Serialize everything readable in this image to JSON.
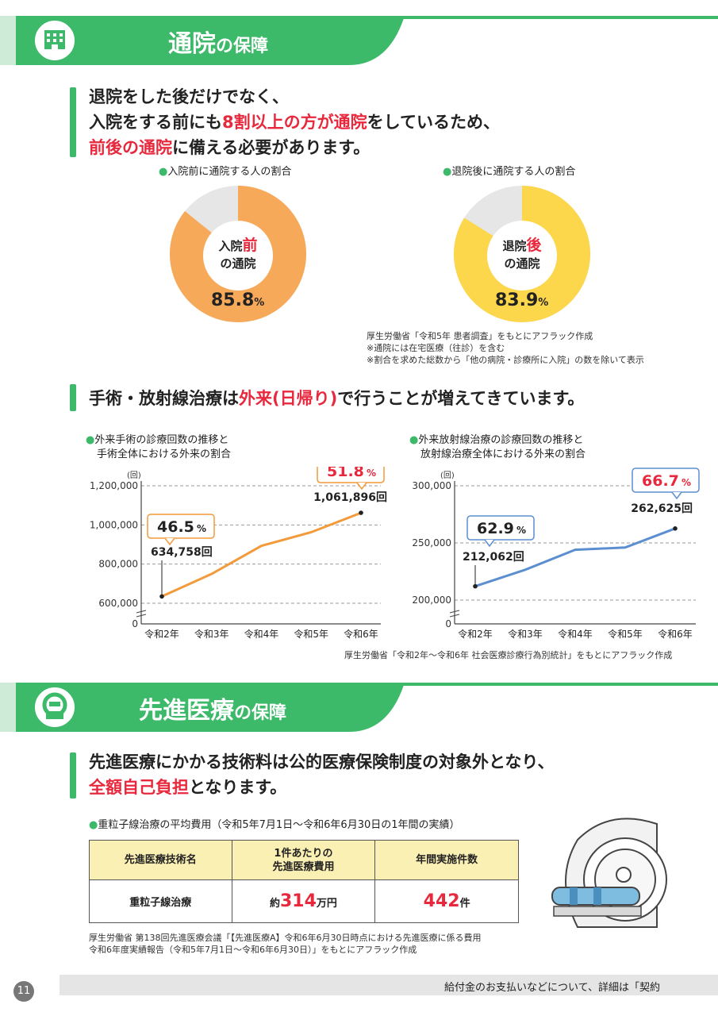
{
  "section1": {
    "title_main": "通院",
    "title_suffix": "の保障",
    "lead_line1": "退院をした後だけでなく、",
    "lead_line2_pre": "入院をする前にも",
    "lead_line2_red": "8割以上の方が通院",
    "lead_line2_post": "をしているため、",
    "lead_line3_red": "前後の通院",
    "lead_line3_post": "に備える必要があります。",
    "donut_before": {
      "caption": "入院前に通院する人の割合",
      "center_a": "入院",
      "center_red": "前",
      "center_b": "の通院",
      "value": "85.8",
      "unit": "%",
      "fraction": 0.858,
      "color": "#f7a95a"
    },
    "donut_after": {
      "caption": "退院後に通院する人の割合",
      "center_a": "退院",
      "center_red": "後",
      "center_b": "の通院",
      "value": "83.9",
      "unit": "%",
      "fraction": 0.839,
      "color": "#fcd64b"
    },
    "notes": [
      "厚生労働省「令和5年 患者調査」をもとにアフラック作成",
      "※通院には在宅医療（往診）を含む",
      "※割合を求めた総数から「他の病院・診療所に入院」の数を除いて表示"
    ]
  },
  "section1b": {
    "lead_pre": "手術・放射線治療は",
    "lead_red": "外来(日帰り)",
    "lead_post": "で行うことが増えてきています。",
    "source": "厚生労働省「令和2年～令和6年 社会医療診療行為別統計」をもとにアフラック作成"
  },
  "chart_data": [
    {
      "type": "line",
      "title_line1": "外来手術の診療回数の推移と",
      "title_line2": "手術全体における外来の割合",
      "unit_label": "(回)",
      "categories": [
        "令和2年",
        "令和3年",
        "令和4年",
        "令和5年",
        "令和6年"
      ],
      "values": [
        634758,
        750000,
        893000,
        963000,
        1061896
      ],
      "yticks": [
        "1,200,000",
        "1,000,000",
        "800,000",
        "600,000"
      ],
      "ytick_values": [
        1200000,
        1000000,
        800000,
        600000
      ],
      "zero_label": "0",
      "ylim": [
        600000,
        1200000
      ],
      "color": "#f39a3a",
      "first_label": "634,758回",
      "last_label": "1,061,896回",
      "first_pct": "46.5",
      "last_pct": "51.8",
      "pct_unit": "%"
    },
    {
      "type": "line",
      "title_line1": "外来放射線治療の診療回数の推移と",
      "title_line2": "放射線治療全体における外来の割合",
      "unit_label": "(回)",
      "categories": [
        "令和2年",
        "令和3年",
        "令和4年",
        "令和5年",
        "令和6年"
      ],
      "values": [
        212062,
        226500,
        244000,
        246000,
        262625
      ],
      "yticks": [
        "300,000",
        "250,000",
        "200,000"
      ],
      "ytick_values": [
        300000,
        250000,
        200000
      ],
      "zero_label": "0",
      "ylim": [
        200000,
        300000
      ],
      "color": "#5b8fd0",
      "first_label": "212,062回",
      "last_label": "262,625回",
      "first_pct": "62.9",
      "last_pct": "66.7",
      "pct_unit": "%"
    }
  ],
  "section2": {
    "title_main": "先進医療",
    "title_suffix": "の保障",
    "lead_line1": "先進医療にかかる技術料は公的医療保険制度の対象外となり、",
    "lead_line2_red": "全額自己負担",
    "lead_line2_post": "となります。",
    "table_caption": "重粒子線治療の平均費用（令和5年7月1日～令和6年6月30日の1年間の実績）",
    "table": {
      "h1": "先進医療技術名",
      "h2a": "1件あたりの",
      "h2b": "先進医療費用",
      "h3": "年間実施件数",
      "name": "重粒子線治療",
      "cost_prefix": "約",
      "cost_value": "314",
      "cost_unit": "万円",
      "count_value": "442",
      "count_unit": "件"
    },
    "notes": [
      "厚生労働省 第138回先進医療会議「【先進医療A】令和6年6月30日時点における先進医療に係る費用",
      "令和6年度実績報告（令和5年7月1日～令和6年6月30日）」をもとにアフラック作成"
    ]
  },
  "footer": {
    "text": "給付金のお支払いなどについて、詳細は「契約",
    "page": "11"
  },
  "colors": {
    "green": "#3db96a",
    "red": "#e8283c",
    "orange": "#f7a95a",
    "yellow": "#fcd64b",
    "grey": "#e6e6e6"
  }
}
